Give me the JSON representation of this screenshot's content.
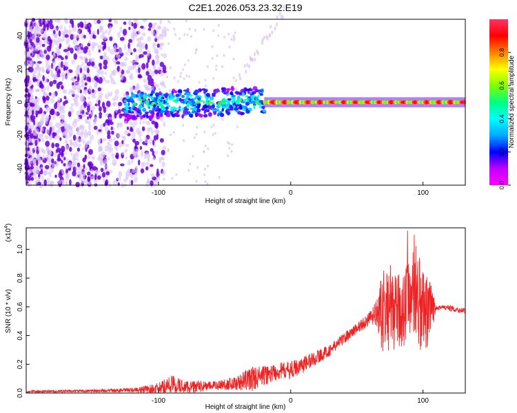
{
  "title": "C2E1.2026.053.23.32.E19",
  "colors": {
    "line": "#ee2222",
    "frame": "#000000",
    "scatter_dark": "#6a00d8",
    "scatter_light": "#d9c2f5"
  },
  "chart_data": [
    {
      "type": "heatmap",
      "name": "spectrogram",
      "xlabel": "Height of straight line (km)",
      "ylabel": "Frequency (Hz)",
      "xlim": [
        -200,
        132
      ],
      "ylim": [
        -50,
        50
      ],
      "xticks": [
        -100,
        0,
        100
      ],
      "yticks": [
        -40,
        -20,
        0,
        20,
        40
      ],
      "grid": false,
      "colorbar": {
        "label": "Normalized spectral amplitude",
        "range": [
          0,
          1
        ],
        "ticks": [
          "0.0",
          "0.2",
          "0.4",
          "0.6",
          "0.8"
        ],
        "tick_values": [
          0.0,
          0.2,
          0.4,
          0.6,
          0.8
        ],
        "stops": [
          "#ff00ff",
          "#c000ff",
          "#0000ff",
          "#00aaff",
          "#00ffff",
          "#00ff80",
          "#80ff00",
          "#ffff00",
          "#ff8000",
          "#ff0000",
          "#ff3366"
        ]
      },
      "segments": [
        {
          "range": [
            -200,
            -100
          ],
          "description": "broadband noise",
          "amplitude": 0.15
        },
        {
          "range": [
            -125,
            -20
          ],
          "center_hz": 0,
          "width_hz": 8,
          "amplitude": 0.45
        },
        {
          "range": [
            -20,
            132
          ],
          "center_hz": 0,
          "width_hz": 3,
          "amplitude": 0.9
        }
      ]
    },
    {
      "type": "line",
      "name": "snr",
      "xlabel": "Height of straight line (km)",
      "ylabel": "SNR (10 * v/v)",
      "y_scale_label": "(x10",
      "y_scale_exp": "4",
      "y_scale_close": ")",
      "xlim": [
        -200,
        132
      ],
      "ylim": [
        0,
        1.15
      ],
      "xticks": [
        -100,
        0,
        100
      ],
      "yticks": [
        "0.0",
        "0.2",
        "0.4",
        "0.6",
        "0.8",
        "1.0"
      ],
      "ytick_values": [
        0.0,
        0.2,
        0.4,
        0.6,
        0.8,
        1.0
      ],
      "grid": false,
      "series": [
        {
          "name": "SNR",
          "x": [
            -200,
            -150,
            -120,
            -100,
            -90,
            -80,
            -60,
            -40,
            -30,
            -20,
            -10,
            0,
            10,
            20,
            30,
            40,
            50,
            60,
            65,
            70,
            75,
            80,
            85,
            90,
            95,
            100,
            105,
            110,
            120,
            132
          ],
          "y": [
            0.01,
            0.015,
            0.02,
            0.03,
            0.06,
            0.04,
            0.05,
            0.07,
            0.1,
            0.12,
            0.15,
            0.16,
            0.2,
            0.25,
            0.3,
            0.38,
            0.45,
            0.52,
            0.55,
            0.56,
            0.6,
            0.55,
            0.6,
            0.65,
            0.7,
            0.55,
            0.55,
            0.6,
            0.59,
            0.57
          ],
          "noise": [
            0.008,
            0.01,
            0.015,
            0.04,
            0.07,
            0.05,
            0.03,
            0.05,
            0.09,
            0.07,
            0.06,
            0.06,
            0.06,
            0.05,
            0.04,
            0.04,
            0.04,
            0.05,
            0.1,
            0.3,
            0.3,
            0.25,
            0.3,
            0.3,
            0.35,
            0.3,
            0.25,
            0.02,
            0.02,
            0.02
          ]
        }
      ]
    }
  ]
}
